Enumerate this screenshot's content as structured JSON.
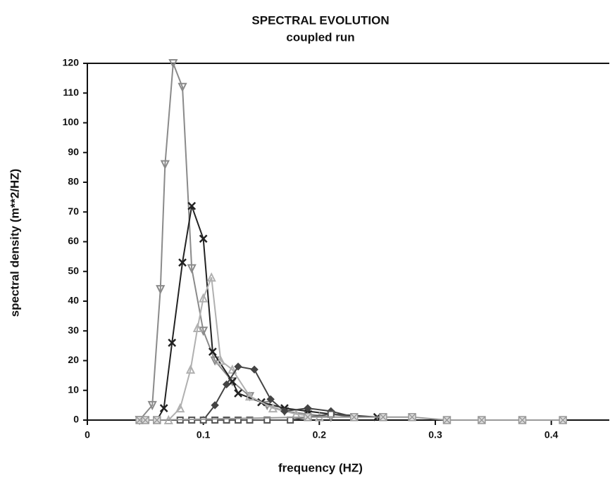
{
  "chart_data": {
    "type": "line",
    "title": "SPECTRAL EVOLUTION",
    "subtitle": "coupled run",
    "x_label": "frequency (HZ)",
    "y_label": "spectral density  (m**2/HZ)",
    "xlim": [
      0,
      0.45
    ],
    "ylim": [
      0,
      120
    ],
    "xticks": [
      0,
      0.1,
      0.2,
      0.3,
      0.4
    ],
    "yticks": [
      0,
      10,
      20,
      30,
      40,
      50,
      60,
      70,
      80,
      90,
      100,
      110,
      120
    ],
    "series": [
      {
        "color": "#8a8a8a",
        "marker": "triangle-down",
        "x": [
          0.045,
          0.056,
          0.063,
          0.067,
          0.074,
          0.082,
          0.09,
          0.1,
          0.11,
          0.125,
          0.14,
          0.155,
          0.17,
          0.19,
          0.21
        ],
        "values": [
          0,
          5,
          44,
          86,
          120,
          112,
          51,
          30,
          20,
          13,
          8,
          5,
          3,
          2,
          1
        ]
      },
      {
        "color": "#222222",
        "marker": "cross",
        "x": [
          0.06,
          0.066,
          0.073,
          0.082,
          0.09,
          0.1,
          0.108,
          0.125,
          0.13,
          0.15,
          0.17,
          0.19,
          0.21,
          0.25
        ],
        "values": [
          0,
          4,
          26,
          53,
          72,
          61,
          23,
          13,
          9,
          6,
          4,
          3,
          2,
          1
        ]
      },
      {
        "color": "#b0b0b0",
        "marker": "triangle-up",
        "x": [
          0.07,
          0.08,
          0.089,
          0.095,
          0.1,
          0.107,
          0.115,
          0.125,
          0.14,
          0.16,
          0.18,
          0.2
        ],
        "values": [
          0,
          4,
          17,
          31,
          41,
          48,
          20,
          17,
          8,
          4,
          2,
          1
        ]
      },
      {
        "color": "#444444",
        "marker": "diamond",
        "x": [
          0.1,
          0.11,
          0.12,
          0.13,
          0.144,
          0.158,
          0.17,
          0.19,
          0.21,
          0.23
        ],
        "values": [
          0,
          5,
          12,
          18,
          17,
          7,
          3,
          4,
          3,
          1
        ]
      },
      {
        "color": "#555555",
        "marker": "square",
        "x": [
          0.08,
          0.09,
          0.1,
          0.11,
          0.12,
          0.13,
          0.14,
          0.155,
          0.175,
          0.19,
          0.21,
          0.23
        ],
        "values": [
          0,
          0,
          0,
          0,
          0,
          0,
          0,
          0,
          0,
          1,
          2,
          1
        ]
      },
      {
        "color": "#999999",
        "marker": "square-x",
        "x": [
          0.045,
          0.05,
          0.06,
          0.19,
          0.23,
          0.255,
          0.28,
          0.31,
          0.34,
          0.375,
          0.41
        ],
        "values": [
          0,
          0,
          0,
          1,
          1,
          1,
          1,
          0,
          0,
          0,
          0
        ]
      }
    ]
  }
}
